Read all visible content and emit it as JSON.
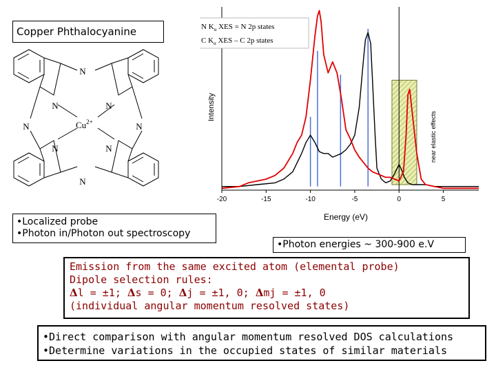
{
  "title": "Copper Phthalocyanine",
  "molecule": {
    "center_label": "Cu",
    "center_charge": "2+",
    "nitrogen_label": "N"
  },
  "bullets_left": [
    "•Localized probe",
    "•Photon in/Photon out spectroscopy"
  ],
  "energy_note": "•Photon energies ~ 300-900 e.V",
  "dipole_lines": {
    "line1": "Emission from the same excited atom (elemental probe)",
    "line2": "Dipole selection rules:",
    "rule_l": "l = ±1;",
    "rule_s": "s = 0;",
    "rule_j": "j = ±1, 0;",
    "rule_mj": "mj = ±1, 0",
    "line4": "(individual angular momentum resolved states)"
  },
  "dos_lines": [
    "•Direct comparison with angular momentum resolved DOS calculations",
    "•Determine variations in the occupied states of similar materials"
  ],
  "chart_data": {
    "type": "line",
    "xlabel": "Energy (eV)",
    "ylabel": "Intensity",
    "xlim": [
      -20,
      9
    ],
    "ylim": [
      0,
      1
    ],
    "xticks": [
      -20,
      -15,
      -10,
      -5,
      0,
      5
    ],
    "annotation": "near elastic effects",
    "legend_position": "top-left",
    "series": [
      {
        "name": "N Kα XES = N 2p states",
        "legend_main": "N K",
        "legend_sub": "α",
        "legend_rest": " XES = N 2p states",
        "color": "#000000",
        "x": [
          -20,
          -18,
          -16,
          -14,
          -13,
          -12,
          -11,
          -10.5,
          -10,
          -9.5,
          -9,
          -8.5,
          -8,
          -7.5,
          -7,
          -6.5,
          -6,
          -5.5,
          -5,
          -4.5,
          -4,
          -3.8,
          -3.5,
          -3.2,
          -3,
          -2.7,
          -2.5,
          -2,
          -1.5,
          -1,
          -0.5,
          0,
          0.3,
          0.6,
          1,
          1.5,
          2,
          3,
          4,
          5,
          6,
          7,
          8,
          9
        ],
        "y": [
          0.02,
          0.02,
          0.03,
          0.04,
          0.06,
          0.1,
          0.2,
          0.26,
          0.3,
          0.26,
          0.21,
          0.2,
          0.2,
          0.18,
          0.19,
          0.2,
          0.22,
          0.25,
          0.3,
          0.45,
          0.72,
          0.82,
          0.86,
          0.8,
          0.6,
          0.3,
          0.12,
          0.06,
          0.04,
          0.05,
          0.09,
          0.14,
          0.11,
          0.07,
          0.04,
          0.03,
          0.03,
          0.03,
          0.02,
          0.02,
          0.02,
          0.02,
          0.02,
          0.02
        ]
      },
      {
        "name": "C Kα XES – C 2p states",
        "legend_main": "C K",
        "legend_sub": "α",
        "legend_rest": " XES – C 2p states",
        "color": "#e00000",
        "x": [
          -20,
          -18,
          -17,
          -16,
          -15,
          -14,
          -13,
          -12,
          -11.5,
          -11,
          -10.5,
          -10,
          -9.5,
          -9.2,
          -9,
          -8.8,
          -8.5,
          -8,
          -7.5,
          -7,
          -6.5,
          -6,
          -5.5,
          -5,
          -4.5,
          -4,
          -3.5,
          -3,
          -2.5,
          -2,
          -1.5,
          -1,
          -0.5,
          0,
          0.5,
          0.8,
          1,
          1.2,
          1.5,
          2,
          2.5,
          3,
          4,
          5,
          6,
          7,
          8,
          9
        ],
        "y": [
          0.01,
          0.02,
          0.04,
          0.05,
          0.06,
          0.08,
          0.12,
          0.2,
          0.26,
          0.3,
          0.4,
          0.6,
          0.84,
          0.95,
          0.98,
          0.92,
          0.74,
          0.64,
          0.7,
          0.64,
          0.5,
          0.33,
          0.28,
          0.22,
          0.18,
          0.15,
          0.12,
          0.1,
          0.09,
          0.08,
          0.07,
          0.07,
          0.06,
          0.05,
          0.1,
          0.3,
          0.52,
          0.55,
          0.42,
          0.2,
          0.06,
          0.03,
          0.02,
          0.01,
          0.01,
          0.01,
          0.01,
          0.01
        ]
      }
    ],
    "marker_lines": [
      {
        "x": -10,
        "y_top": 0.4
      },
      {
        "x": -9.2,
        "y_top": 0.76
      },
      {
        "x": -6.6,
        "y_top": 0.63
      },
      {
        "x": -3.5,
        "y_top": 0.88
      }
    ],
    "zero_line_x": 0,
    "shaded_region": {
      "x0": -0.8,
      "x1": 2.0,
      "y0": 0.03,
      "y1": 0.6
    }
  }
}
